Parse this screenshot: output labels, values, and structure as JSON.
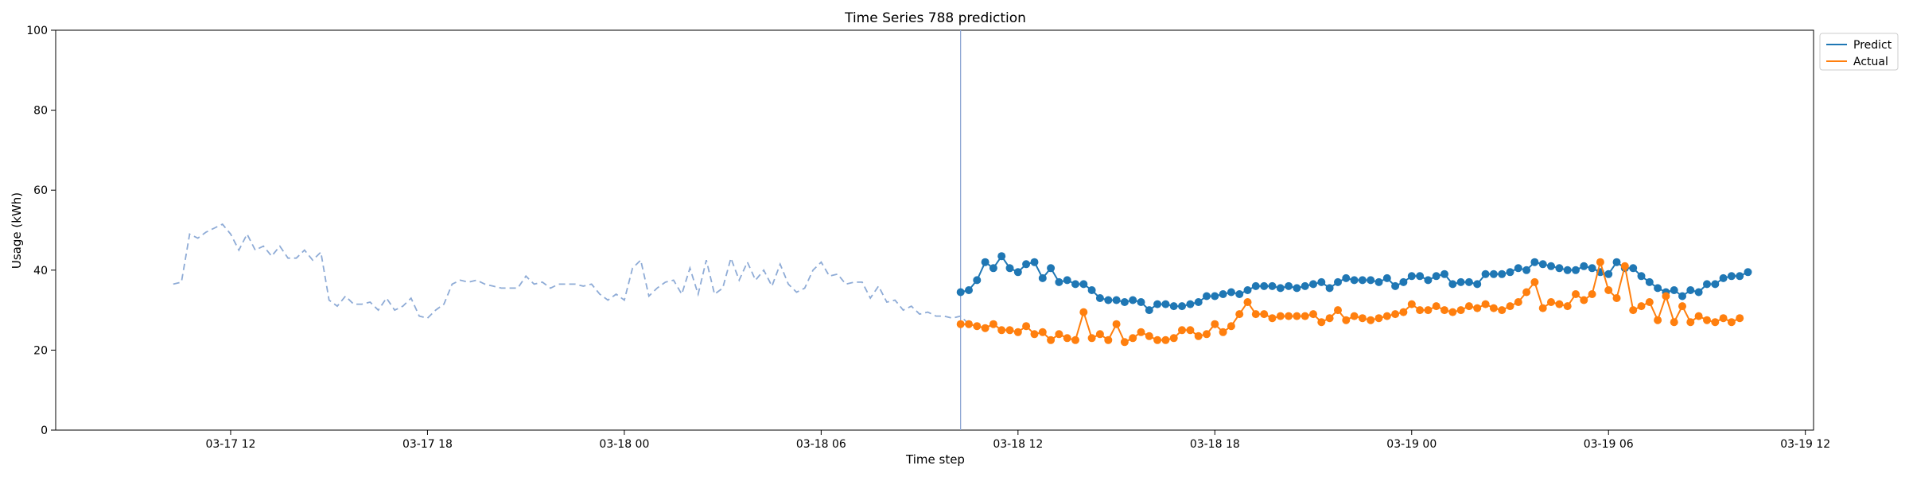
{
  "chart_data": {
    "type": "line",
    "title": "Time Series 788 prediction",
    "xlabel": "Time step",
    "ylabel": "Usage (kWh)",
    "ylim": [
      0,
      100
    ],
    "xlim": [
      "2019-03-17 06:40",
      "2019-03-19 12:15"
    ],
    "yticks": [
      0,
      20,
      40,
      60,
      80,
      100
    ],
    "xticks": [
      {
        "t": "2019-03-17 12:00",
        "label": "03-17 12"
      },
      {
        "t": "2019-03-17 18:00",
        "label": "03-17 18"
      },
      {
        "t": "2019-03-18 00:00",
        "label": "03-18 00"
      },
      {
        "t": "2019-03-18 06:00",
        "label": "03-18 06"
      },
      {
        "t": "2019-03-18 12:00",
        "label": "03-18 12"
      },
      {
        "t": "2019-03-18 18:00",
        "label": "03-18 18"
      },
      {
        "t": "2019-03-19 00:00",
        "label": "03-19 00"
      },
      {
        "t": "2019-03-19 06:00",
        "label": "03-19 06"
      },
      {
        "t": "2019-03-19 12:00",
        "label": "03-19 12"
      }
    ],
    "grid": false,
    "legend_position": "outside top-right",
    "forecast_start": "2019-03-18 10:15",
    "interval_minutes": 15,
    "history": {
      "start": "2019-03-17 10:15",
      "values": [
        36.5,
        37,
        49,
        48,
        49.5,
        50.5,
        51.5,
        49,
        45,
        49,
        45,
        46,
        43.5,
        46,
        43,
        43,
        45,
        42.5,
        44.5,
        32.5,
        31,
        33.5,
        31.5,
        31.5,
        32,
        30,
        33,
        30,
        31,
        33,
        28.5,
        28,
        30,
        31.5,
        36.5,
        37.5,
        37,
        37.5,
        36.5,
        36,
        35.5,
        35.5,
        35.5,
        38.5,
        36.5,
        37,
        35.5,
        36.5,
        36.5,
        36.5,
        36,
        36.5,
        34,
        32.5,
        34,
        32.5,
        40.5,
        42.5,
        33.5,
        35.5,
        37,
        37.5,
        34,
        40.5,
        34,
        42.5,
        34,
        35.5,
        43,
        37.5,
        42,
        37.5,
        40,
        36,
        41.5,
        36.5,
        34.5,
        35.5,
        40,
        42,
        38.5,
        39,
        36.5,
        37,
        37,
        33,
        36,
        32,
        32.5,
        30,
        31,
        29,
        29.5,
        28.5,
        28.5,
        28,
        28.5,
        26.5
      ]
    },
    "series": [
      {
        "name": "Predict",
        "color": "#1f77b4",
        "start": "2019-03-18 10:15",
        "values": [
          34.5,
          35,
          37.5,
          42,
          40.5,
          43.5,
          40.5,
          39.5,
          41.5,
          42,
          38,
          40.5,
          37,
          37.5,
          36.5,
          36.5,
          35,
          33,
          32.5,
          32.5,
          32,
          32.5,
          32,
          30,
          31.5,
          31.5,
          31,
          31,
          31.5,
          32,
          33.5,
          33.5,
          34,
          34.5,
          34,
          35,
          36,
          36,
          36,
          35.5,
          36,
          35.5,
          36,
          36.5,
          37,
          35.5,
          37,
          38,
          37.5,
          37.5,
          37.5,
          37,
          38,
          36,
          37,
          38.5,
          38.5,
          37.5,
          38.5,
          39,
          36.5,
          37,
          37,
          36.5,
          39,
          39,
          39,
          39.5,
          40.5,
          40,
          42,
          41.5,
          41,
          40.5,
          40,
          40,
          41,
          40.5,
          39.5,
          39,
          42,
          40.5,
          40.5,
          38.5,
          37,
          35.5,
          34.5,
          35,
          33.5,
          35,
          34.5,
          36.5,
          36.5,
          38,
          38.5,
          38.5,
          39.5
        ]
      },
      {
        "name": "Actual",
        "color": "#ff7f0e",
        "start": "2019-03-18 10:15",
        "values": [
          26.5,
          26.5,
          26,
          25.5,
          26.5,
          25,
          25,
          24.5,
          26,
          24,
          24.5,
          22.5,
          24,
          23,
          22.5,
          29.5,
          23,
          24,
          22.5,
          26.5,
          22,
          23,
          24.5,
          23.5,
          22.5,
          22.5,
          23,
          25,
          25,
          23.5,
          24,
          26.5,
          24.5,
          26,
          29,
          32,
          29,
          29,
          28,
          28.5,
          28.5,
          28.5,
          28.5,
          29,
          27,
          28,
          30,
          27.5,
          28.5,
          28,
          27.5,
          28,
          28.5,
          29,
          29.5,
          31.5,
          30,
          30,
          31,
          30,
          29.5,
          30,
          31,
          30.5,
          31.5,
          30.5,
          30,
          31,
          32,
          34.5,
          37,
          30.5,
          32,
          31.5,
          31,
          34,
          32.5,
          34,
          42,
          35,
          33,
          41,
          30,
          31,
          32,
          27.5,
          33.5,
          27,
          31,
          27,
          28.5,
          27.5,
          27,
          28,
          27,
          28
        ]
      }
    ],
    "history_color": "#8eabd6"
  }
}
